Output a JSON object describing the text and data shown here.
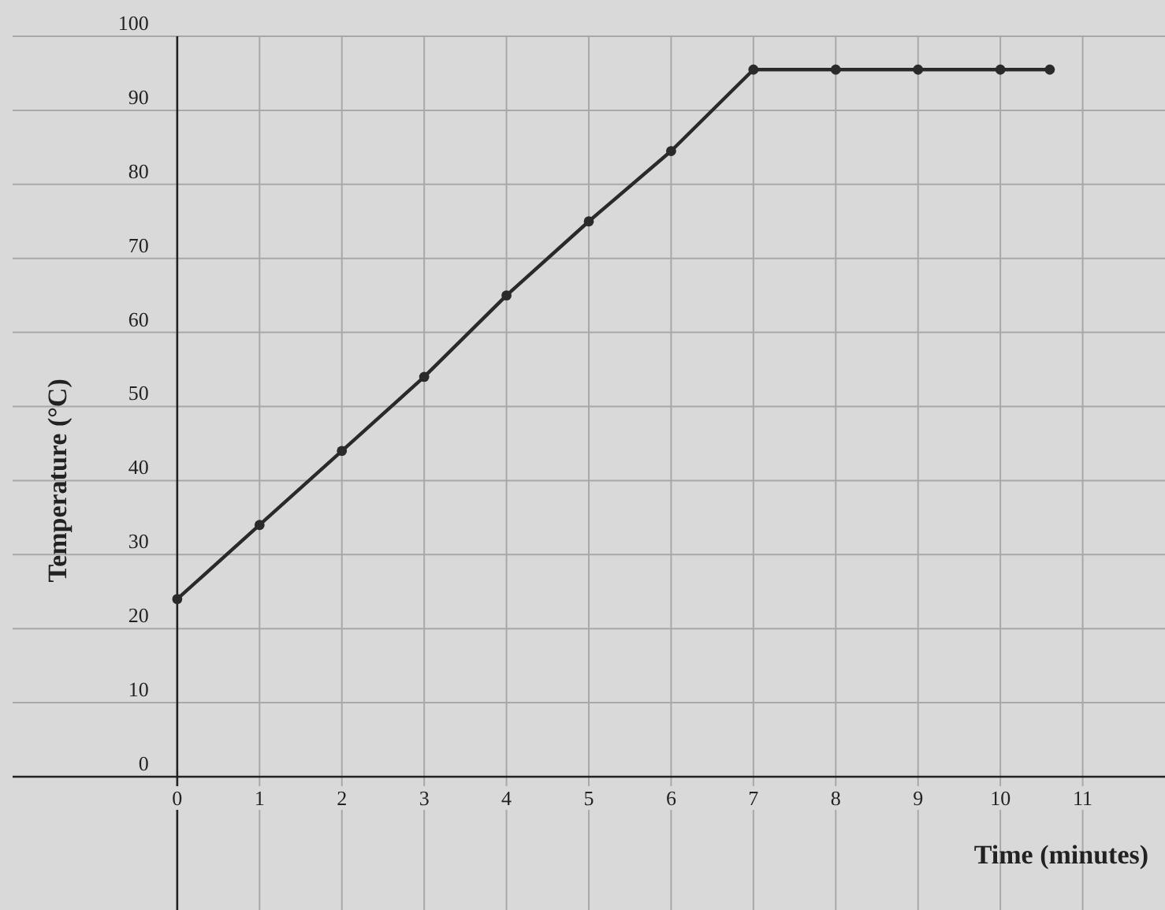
{
  "chart_data": {
    "type": "line",
    "xlabel": "Time (minutes)",
    "ylabel": "Temperature (°C)",
    "x": [
      0,
      1,
      2,
      3,
      4,
      5,
      6,
      7,
      8,
      9,
      10,
      10.6
    ],
    "series": [
      {
        "color": "#2a2a2a",
        "values": [
          24,
          34,
          44,
          54,
          65,
          75,
          84.5,
          95.5,
          95.5,
          95.5,
          95.5,
          95.5
        ]
      }
    ],
    "xlim": [
      -2,
      12
    ],
    "ylim": [
      -18,
      100
    ],
    "xticks": [
      0,
      1,
      2,
      3,
      4,
      5,
      6,
      7,
      8,
      9,
      10,
      11
    ],
    "yticks": [
      0,
      10,
      20,
      30,
      40,
      50,
      60,
      70,
      80,
      90,
      100
    ],
    "grid": true,
    "marker": "circle",
    "line_style": "solid"
  }
}
